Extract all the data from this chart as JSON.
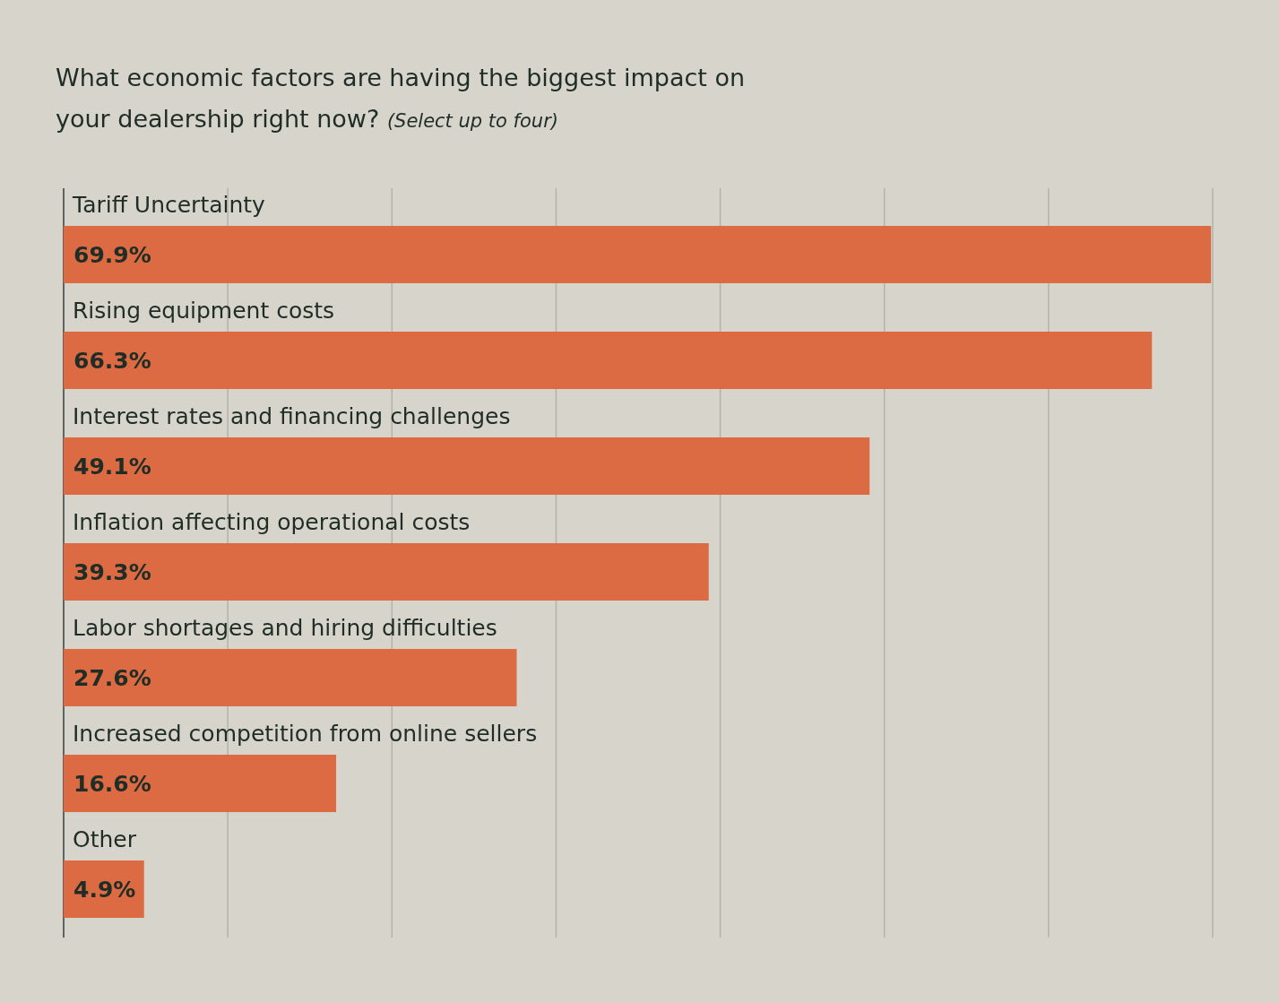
{
  "chart_data": {
    "type": "bar",
    "orientation": "horizontal",
    "title": "What economic factors are having the biggest impact on your dealership right now?",
    "subtitle": "(Select up to four)",
    "categories": [
      "Tariff Uncertainty",
      "Rising equipment costs",
      "Interest rates and financing challenges",
      "Inflation affecting operational costs",
      "Labor shortages and hiring difficulties",
      "Increased competition from online sellers",
      "Other"
    ],
    "values": [
      69.9,
      66.3,
      49.1,
      39.3,
      27.6,
      16.6,
      4.9
    ],
    "value_labels": [
      "69.9%",
      "66.3%",
      "49.1%",
      "39.3%",
      "27.6%",
      "16.6%",
      "4.9%"
    ],
    "color": "#dc6b43",
    "xlim": [
      0,
      70
    ],
    "xticks": [
      {
        "value": 0,
        "label": null
      },
      {
        "value": 10,
        "label": null
      },
      {
        "value": 20,
        "label": null
      },
      {
        "value": 30,
        "label": null
      },
      {
        "value": 40,
        "label": null
      },
      {
        "value": 50,
        "label": null
      },
      {
        "value": 60,
        "label": null
      },
      {
        "value": 70,
        "label": null
      }
    ],
    "grid": "x"
  }
}
